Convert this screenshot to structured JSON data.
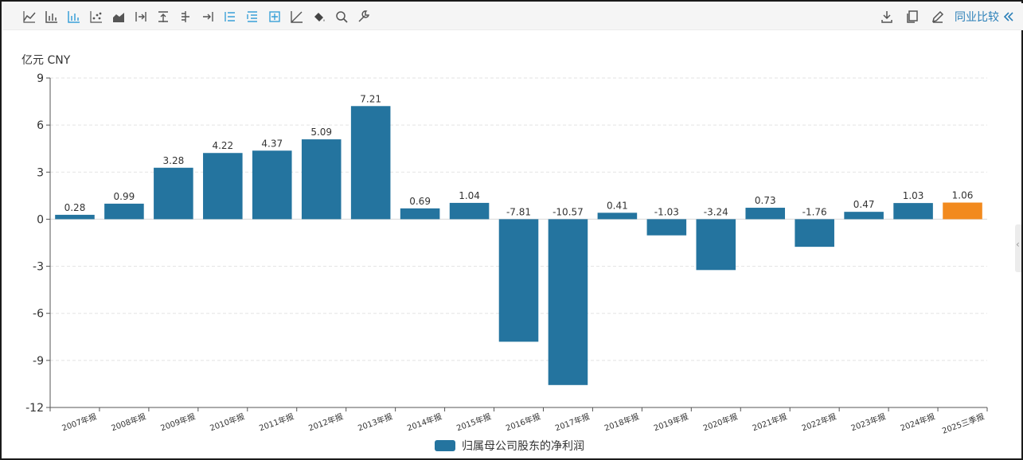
{
  "toolbar": {
    "left_icons": [
      "line-chart-icon",
      "bar-chart-icon",
      "bar-chart-active-icon",
      "scatter-chart-icon",
      "area-chart-icon",
      "align-right-icon",
      "align-top-icon",
      "align-center-icon",
      "align-end-icon",
      "list-active-icon",
      "list-indent-icon",
      "grid-add-icon",
      "trend-line-icon",
      "paint-bucket-icon",
      "zoom-icon",
      "wrench-icon"
    ],
    "right_icons": [
      "download-icon",
      "copy-icon",
      "edit-icon"
    ],
    "compare_label": "同业比较",
    "compare_icon": "double-chevron-left-icon"
  },
  "chart_data": {
    "type": "bar",
    "unit_label": "亿元  CNY",
    "categories": [
      "2007年报",
      "2008年报",
      "2009年报",
      "2010年报",
      "2011年报",
      "2012年报",
      "2013年报",
      "2014年报",
      "2015年报",
      "2016年报",
      "2017年报",
      "2018年报",
      "2019年报",
      "2020年报",
      "2021年报",
      "2022年报",
      "2023年报",
      "2024年报",
      "2025三季报"
    ],
    "series": [
      {
        "name": "归属母公司股东的净利润",
        "values": [
          0.28,
          0.99,
          3.28,
          4.22,
          4.37,
          5.09,
          7.21,
          0.69,
          1.04,
          -7.81,
          -10.57,
          0.41,
          -1.03,
          -3.24,
          0.73,
          -1.76,
          0.47,
          1.03,
          1.06
        ],
        "labels": [
          "0.28",
          "0.99",
          "3.28",
          "4.22",
          "4.37",
          "5.09",
          "7.21",
          "0.69",
          "1.04",
          "-7.81",
          "-10.57",
          "0.41",
          "-1.03",
          "-3.24",
          "0.73",
          "-1.76",
          "0.47",
          "1.03",
          "1.06"
        ]
      }
    ],
    "ylim": [
      -12,
      9
    ],
    "yticks": [
      -12,
      -9,
      -6,
      -3,
      0,
      3,
      6,
      9
    ],
    "colors": {
      "bar": "#24749f",
      "highlight": "#f28a1e",
      "grid": "#e3e3e3",
      "axis": "#555555"
    },
    "highlight_index": 18,
    "grid": true,
    "legend_position": "bottom-center"
  }
}
